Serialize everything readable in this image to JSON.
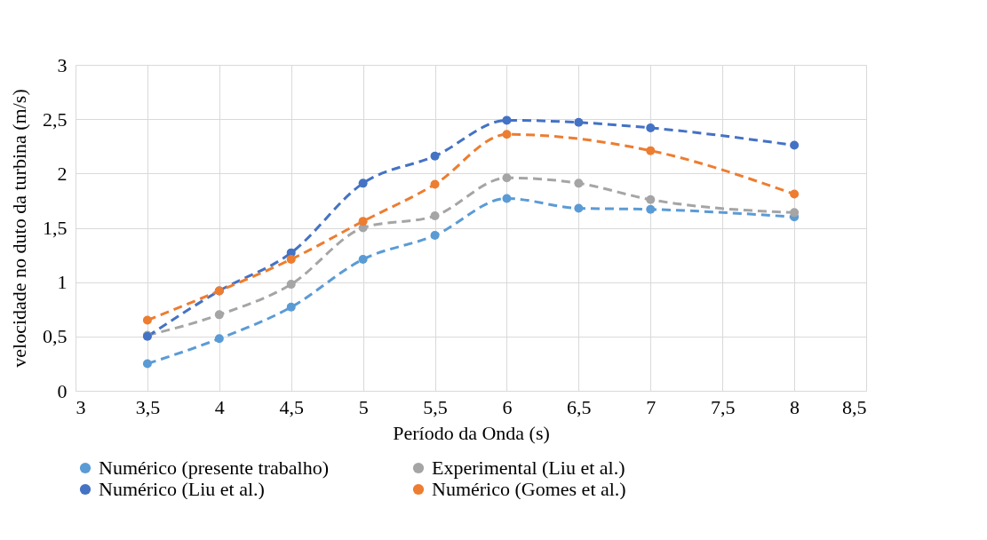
{
  "chart_data": {
    "type": "line",
    "xlabel": "Período da Onda (s)",
    "ylabel": "velocidade no duto  da turbina (m/s)",
    "x": [
      3.5,
      4,
      4.5,
      5,
      5.5,
      6,
      6.5,
      7,
      8
    ],
    "series": [
      {
        "name": "Numérico (presente trabalho)",
        "color": "#5b9bd5",
        "values": [
          0.25,
          0.48,
          0.77,
          1.21,
          1.43,
          1.77,
          1.68,
          1.67,
          1.6
        ]
      },
      {
        "name": "Experimental (Liu et al.)",
        "color": "#a5a5a5",
        "values": [
          0.51,
          0.7,
          0.98,
          1.5,
          1.61,
          1.96,
          1.91,
          1.76,
          1.64
        ]
      },
      {
        "name": "Numérico (Liu et al.)",
        "color": "#4472c4",
        "values": [
          0.5,
          0.92,
          1.27,
          1.91,
          2.16,
          2.49,
          2.47,
          2.42,
          2.26
        ]
      },
      {
        "name": "Numérico (Gomes et al.)",
        "color": "#ed7d31",
        "values": [
          0.65,
          0.92,
          1.21,
          1.56,
          1.9,
          2.36,
          null,
          2.21,
          1.81
        ]
      }
    ],
    "xlim": [
      3,
      8.5
    ],
    "xticks": [
      {
        "value": 3,
        "label": "3"
      },
      {
        "value": 3.5,
        "label": "3,5"
      },
      {
        "value": 4,
        "label": "4"
      },
      {
        "value": 4.5,
        "label": "4,5"
      },
      {
        "value": 5,
        "label": "5"
      },
      {
        "value": 5.5,
        "label": "5,5"
      },
      {
        "value": 6,
        "label": "6"
      },
      {
        "value": 6.5,
        "label": "6,5"
      },
      {
        "value": 7,
        "label": "7"
      },
      {
        "value": 7.5,
        "label": "7,5"
      },
      {
        "value": 8,
        "label": "8"
      },
      {
        "value": 8.5,
        "label": "8,5"
      }
    ],
    "ylim": [
      0,
      3
    ],
    "yticks": [
      {
        "value": 0,
        "label": "0"
      },
      {
        "value": 0.5,
        "label": "0,5"
      },
      {
        "value": 1,
        "label": "1"
      },
      {
        "value": 1.5,
        "label": "1,5"
      },
      {
        "value": 2,
        "label": "2"
      },
      {
        "value": 2.5,
        "label": "2,5"
      },
      {
        "value": 3,
        "label": "3"
      }
    ],
    "grid": true,
    "legend": "bottom",
    "marker": "circle",
    "line_style": "dashed"
  }
}
